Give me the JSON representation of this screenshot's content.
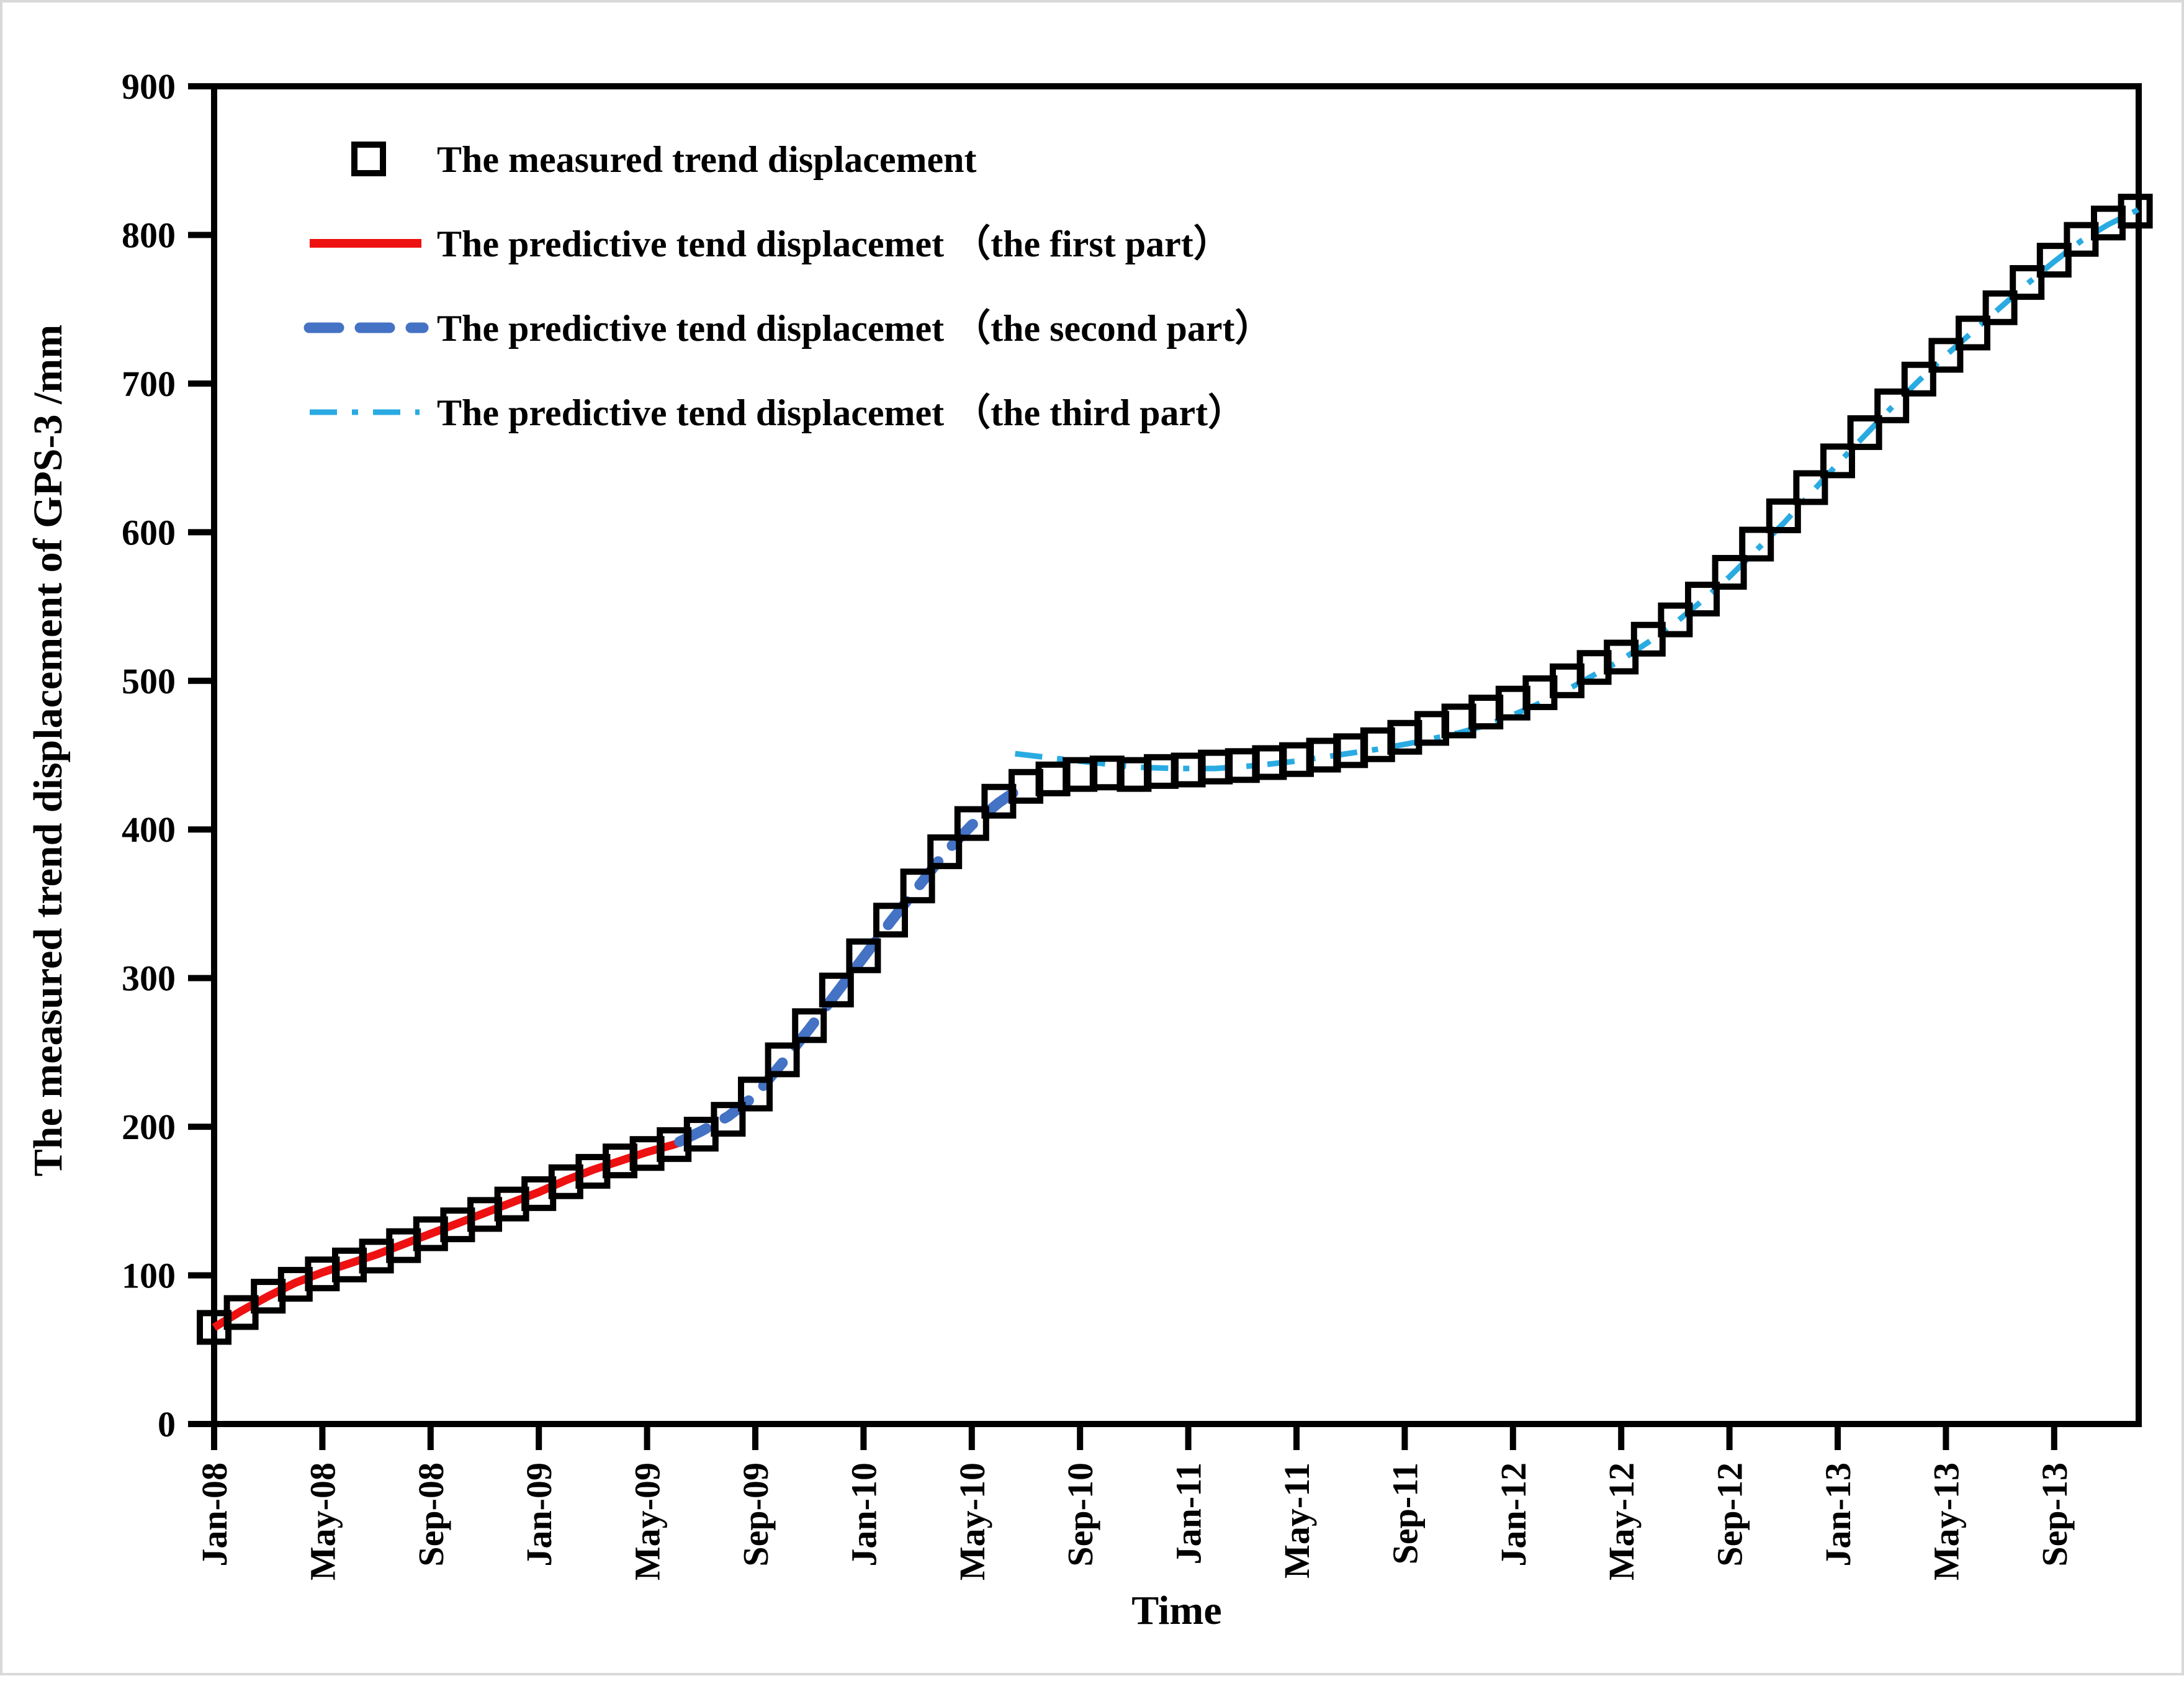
{
  "figure": {
    "kind": "scientific line/scatter figure",
    "background": "#ffffff",
    "frame_color": "#000000"
  },
  "colors": {
    "measured_marker": "#000000",
    "predictive_first": "#ee1111",
    "predictive_second": "#4472c4",
    "predictive_third": "#29abe2",
    "axis": "#000000"
  },
  "legend": {
    "items": [
      {
        "label": "The measured trend displacement",
        "marker": "open-square",
        "color": "#000000"
      },
      {
        "label": "The predictive tend displacemet （the first part）",
        "marker": "solid-line",
        "color": "#ee1111"
      },
      {
        "label": "The predictive tend displacemet （the second part）",
        "marker": "dashed-line",
        "color": "#4472c4"
      },
      {
        "label": "The predictive tend displacemet （the third part）",
        "marker": "dash-dot-line",
        "color": "#29abe2"
      }
    ]
  },
  "chart_data": {
    "type": "line",
    "title": "",
    "xlabel": "Time",
    "ylabel": "The measured trend displacement of GPS-3 /mm",
    "ylim": [
      0,
      900
    ],
    "y_ticks": [
      0,
      100,
      200,
      300,
      400,
      500,
      600,
      700,
      800,
      900
    ],
    "x_tick_labels": [
      "Jan-08",
      "May-08",
      "Sep-08",
      "Jan-09",
      "May-09",
      "Sep-09",
      "Jan-10",
      "May-10",
      "Sep-10",
      "Jan-11",
      "May-11",
      "Sep-11",
      "Jan-12",
      "May-12",
      "Sep-12",
      "Jan-13",
      "May-13",
      "Sep-13"
    ],
    "x_tick_positions_months": [
      0,
      4,
      8,
      12,
      16,
      20,
      24,
      28,
      32,
      36,
      40,
      44,
      48,
      52,
      56,
      60,
      64,
      68
    ],
    "x_unit": "months since Jan-08, monthly samples",
    "grid": "off",
    "legend_position": "inside top-left",
    "series": [
      {
        "name": "The measured trend displacement",
        "type": "scatter",
        "marker": "open-square",
        "color": "#000000",
        "start_month": "Jan-08",
        "end_month": "Dec-13",
        "values": [
          65,
          75,
          86,
          94,
          101,
          107,
          113,
          120,
          128,
          134,
          141,
          148,
          155,
          163,
          170,
          177,
          182,
          188,
          195,
          205,
          222,
          245,
          268,
          292,
          315,
          339,
          362,
          385,
          404,
          419,
          429,
          434,
          437,
          438,
          437,
          439,
          440,
          442,
          443,
          445,
          447,
          450,
          453,
          457,
          462,
          468,
          473,
          479,
          485,
          492,
          500,
          509,
          516,
          528,
          541,
          555,
          573,
          592,
          611,
          630,
          648,
          667,
          685,
          703,
          719,
          734,
          751,
          768,
          783,
          797,
          808,
          816
        ]
      },
      {
        "name": "The predictive tend displacemet （the first part）",
        "type": "line",
        "style": "solid",
        "color": "#ee1111",
        "points": [
          [
            0,
            65
          ],
          [
            1,
            76
          ],
          [
            2,
            86
          ],
          [
            3,
            95
          ],
          [
            4,
            102
          ],
          [
            5,
            108
          ],
          [
            6,
            114
          ],
          [
            7,
            121
          ],
          [
            8,
            128
          ],
          [
            9,
            135
          ],
          [
            10,
            142
          ],
          [
            11,
            149
          ],
          [
            12,
            156
          ],
          [
            13,
            164
          ],
          [
            14,
            171
          ],
          [
            15,
            177
          ],
          [
            16,
            183
          ],
          [
            17,
            188
          ],
          [
            17.6,
            192
          ]
        ]
      },
      {
        "name": "The predictive tend displacemet （the second part）",
        "type": "line",
        "style": "dashed",
        "color": "#4472c4",
        "points": [
          [
            17.2,
            190
          ],
          [
            18,
            197
          ],
          [
            19,
            207
          ],
          [
            20,
            221
          ],
          [
            21,
            243
          ],
          [
            22,
            266
          ],
          [
            23,
            290
          ],
          [
            24,
            314
          ],
          [
            25,
            338
          ],
          [
            26,
            361
          ],
          [
            27,
            384
          ],
          [
            28,
            403
          ],
          [
            29,
            418
          ],
          [
            29.8,
            428
          ]
        ]
      },
      {
        "name": "The predictive tend displacemet （the third part）",
        "type": "line",
        "style": "dash-dot",
        "color": "#29abe2",
        "points": [
          [
            29.6,
            451
          ],
          [
            31,
            448
          ],
          [
            32.5,
            445
          ],
          [
            34,
            442
          ],
          [
            35.5,
            441
          ],
          [
            37,
            441
          ],
          [
            38.5,
            443
          ],
          [
            40,
            446
          ],
          [
            41.5,
            450
          ],
          [
            43,
            454
          ],
          [
            44.5,
            459
          ],
          [
            46,
            465
          ],
          [
            47,
            470
          ],
          [
            48,
            477
          ],
          [
            49,
            485
          ],
          [
            50,
            494
          ],
          [
            51,
            504
          ],
          [
            52,
            514
          ],
          [
            53,
            526
          ],
          [
            54,
            539
          ],
          [
            55,
            554
          ],
          [
            56,
            570
          ],
          [
            57,
            588
          ],
          [
            58,
            606
          ],
          [
            59,
            626
          ],
          [
            60,
            646
          ],
          [
            61,
            665
          ],
          [
            62,
            684
          ],
          [
            63,
            702
          ],
          [
            64,
            719
          ],
          [
            65,
            735
          ],
          [
            66,
            751
          ],
          [
            67,
            767
          ],
          [
            68,
            782
          ],
          [
            69,
            796
          ],
          [
            70,
            807
          ],
          [
            71,
            816
          ],
          [
            71.5,
            822
          ]
        ]
      }
    ]
  }
}
